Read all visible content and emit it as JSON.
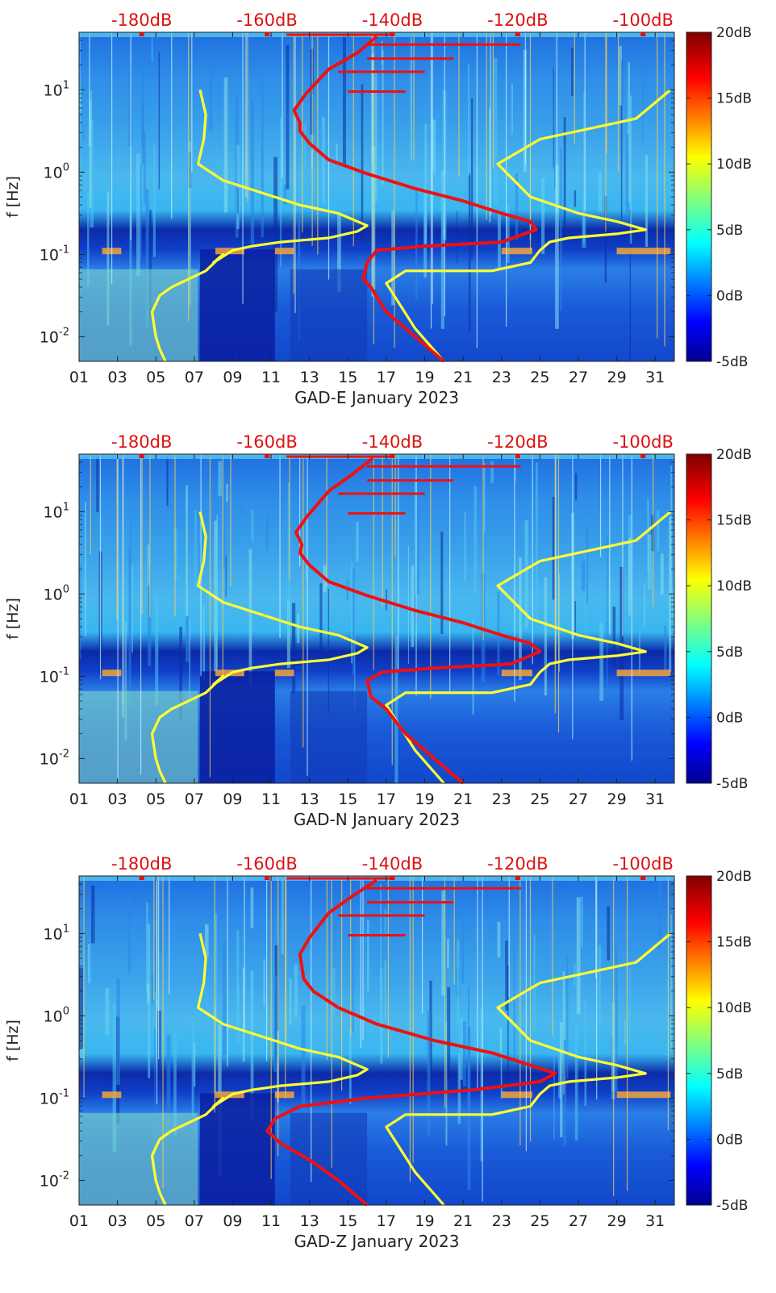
{
  "chart_data": {
    "type": "heatmap",
    "shared": {
      "top_axis_labels": [
        "-180dB",
        "-160dB",
        "-140dB",
        "-120dB",
        "-100dB"
      ],
      "x_tick_labels": [
        "01",
        "03",
        "05",
        "07",
        "09",
        "11",
        "13",
        "15",
        "17",
        "19",
        "21",
        "23",
        "25",
        "27",
        "29",
        "31"
      ],
      "y_tick_labels": [
        "10^-2",
        "10^-1",
        "10^0",
        "10^1"
      ],
      "y_tick_decades": [
        -2,
        -1,
        0,
        1
      ],
      "ylabel": "f [Hz]",
      "xlim": [
        1,
        32
      ],
      "ylim_log10": [
        -2.3,
        1.7
      ],
      "top_axis_range_db": [
        -190,
        -95
      ],
      "colorbar_labels": [
        "20dB",
        "15dB",
        "10dB",
        "5dB",
        "0dB",
        "-5dB"
      ],
      "colorbar_values": [
        20,
        15,
        10,
        5,
        0,
        -5
      ],
      "colors": {
        "model_curve": "#ffff33",
        "psd_curve": "#ee1111",
        "top_labels": "#dd1111"
      }
    },
    "panels": [
      {
        "title": "GAD-E January 2023",
        "series": [
          {
            "name": "noise-model-left",
            "x": [
              5.5,
              5.2,
              5.0,
              4.9,
              4.8,
              5.0,
              5.2,
              5.8,
              7.6,
              8.5,
              8.0,
              9.0,
              10.0,
              11.5,
              14.0,
              15.5,
              16.0,
              14.5,
              12.5,
              10.5,
              8.5,
              7.2,
              7.5,
              7.6,
              7.3
            ],
            "y": [
              -2.3,
              -2.15,
              -2.0,
              -1.85,
              -1.7,
              -1.6,
              -1.5,
              -1.4,
              -1.2,
              -1.0,
              -1.1,
              -0.95,
              -0.9,
              -0.85,
              -0.8,
              -0.72,
              -0.65,
              -0.5,
              -0.4,
              -0.25,
              -0.1,
              0.1,
              0.4,
              0.7,
              1.0
            ]
          },
          {
            "name": "noise-model-right",
            "x": [
              20.0,
              18.5,
              17.0,
              18.0,
              22.5,
              24.5,
              25.0,
              25.5,
              26.5,
              29.0,
              30.5,
              29.0,
              27.0,
              24.5,
              22.8,
              25.0,
              28.0,
              30.0,
              31.8
            ],
            "y": [
              -2.3,
              -1.9,
              -1.35,
              -1.2,
              -1.2,
              -1.1,
              -0.95,
              -0.85,
              -0.8,
              -0.75,
              -0.7,
              -0.6,
              -0.5,
              -0.3,
              0.1,
              0.4,
              0.55,
              0.65,
              1.0
            ]
          },
          {
            "name": "psd-curve",
            "x": [
              20.0,
              18.5,
              17.0,
              16.2,
              15.8,
              16.0,
              16.5,
              19.0,
              23.0,
              24.8,
              24.5,
              23.0,
              21.0,
              18.5,
              16.0,
              14.0,
              13.0,
              12.5,
              12.5,
              12.2,
              12.8,
              14.0,
              15.5,
              16.5
            ],
            "y": [
              -2.3,
              -2.0,
              -1.7,
              -1.4,
              -1.3,
              -1.1,
              -0.95,
              -0.9,
              -0.85,
              -0.7,
              -0.6,
              -0.5,
              -0.35,
              -0.2,
              -0.02,
              0.15,
              0.35,
              0.5,
              0.6,
              0.75,
              0.95,
              1.25,
              1.45,
              1.65
            ]
          }
        ]
      },
      {
        "title": "GAD-N January 2023",
        "series": [
          {
            "name": "noise-model-left",
            "x": [
              5.5,
              5.2,
              5.0,
              4.9,
              4.8,
              5.0,
              5.2,
              5.8,
              7.6,
              8.5,
              8.0,
              9.0,
              10.0,
              11.5,
              14.0,
              15.5,
              16.0,
              14.5,
              12.5,
              10.5,
              8.5,
              7.2,
              7.5,
              7.6,
              7.3
            ],
            "y": [
              -2.3,
              -2.15,
              -2.0,
              -1.85,
              -1.7,
              -1.6,
              -1.5,
              -1.4,
              -1.2,
              -1.0,
              -1.1,
              -0.95,
              -0.9,
              -0.85,
              -0.8,
              -0.72,
              -0.65,
              -0.5,
              -0.4,
              -0.25,
              -0.1,
              0.1,
              0.4,
              0.7,
              1.0
            ]
          },
          {
            "name": "noise-model-right",
            "x": [
              20.0,
              18.5,
              17.0,
              18.0,
              22.5,
              24.5,
              25.0,
              25.5,
              26.5,
              29.0,
              30.5,
              29.0,
              27.0,
              24.5,
              22.8,
              25.0,
              28.0,
              30.0,
              31.8
            ],
            "y": [
              -2.3,
              -1.9,
              -1.35,
              -1.2,
              -1.2,
              -1.1,
              -0.95,
              -0.85,
              -0.8,
              -0.75,
              -0.7,
              -0.6,
              -0.5,
              -0.3,
              0.1,
              0.4,
              0.55,
              0.65,
              1.0
            ]
          },
          {
            "name": "psd-curve",
            "x": [
              21.0,
              19.5,
              18.0,
              17.0,
              16.2,
              16.0,
              16.8,
              19.5,
              23.5,
              25.0,
              24.5,
              23.0,
              21.0,
              18.5,
              16.0,
              14.0,
              13.0,
              12.5,
              12.6,
              12.3,
              12.9,
              14.0,
              15.2,
              16.3
            ],
            "y": [
              -2.3,
              -2.0,
              -1.7,
              -1.4,
              -1.25,
              -1.05,
              -0.95,
              -0.9,
              -0.85,
              -0.7,
              -0.6,
              -0.5,
              -0.35,
              -0.2,
              -0.02,
              0.15,
              0.35,
              0.5,
              0.6,
              0.75,
              0.95,
              1.25,
              1.45,
              1.65
            ]
          }
        ]
      },
      {
        "title": "GAD-Z January 2023",
        "series": [
          {
            "name": "noise-model-left",
            "x": [
              5.5,
              5.2,
              5.0,
              4.9,
              4.8,
              5.0,
              5.2,
              5.8,
              7.6,
              8.5,
              8.0,
              9.0,
              10.0,
              11.5,
              14.0,
              15.5,
              16.0,
              14.5,
              12.5,
              10.5,
              8.5,
              7.2,
              7.5,
              7.6,
              7.3
            ],
            "y": [
              -2.3,
              -2.15,
              -2.0,
              -1.85,
              -1.7,
              -1.6,
              -1.5,
              -1.4,
              -1.2,
              -1.0,
              -1.1,
              -0.95,
              -0.9,
              -0.85,
              -0.8,
              -0.72,
              -0.65,
              -0.5,
              -0.4,
              -0.25,
              -0.1,
              0.1,
              0.4,
              0.7,
              1.0
            ]
          },
          {
            "name": "noise-model-right",
            "x": [
              20.0,
              18.5,
              17.0,
              18.0,
              22.5,
              24.5,
              25.0,
              25.5,
              26.5,
              29.0,
              30.5,
              29.0,
              27.0,
              24.5,
              22.8,
              25.0,
              28.0,
              30.0,
              31.8
            ],
            "y": [
              -2.3,
              -1.9,
              -1.35,
              -1.2,
              -1.2,
              -1.1,
              -0.95,
              -0.85,
              -0.8,
              -0.75,
              -0.7,
              -0.6,
              -0.5,
              -0.3,
              0.1,
              0.4,
              0.55,
              0.65,
              1.0
            ]
          },
          {
            "name": "psd-curve",
            "x": [
              16.0,
              14.5,
              13.0,
              11.5,
              10.8,
              11.2,
              12.5,
              16.0,
              21.5,
              25.0,
              25.8,
              24.5,
              22.5,
              19.5,
              16.5,
              14.5,
              13.2,
              12.7,
              12.6,
              12.5,
              13.0,
              14.0,
              15.2,
              16.5
            ],
            "y": [
              -2.3,
              -2.0,
              -1.75,
              -1.55,
              -1.4,
              -1.25,
              -1.1,
              -1.0,
              -0.9,
              -0.8,
              -0.7,
              -0.6,
              -0.45,
              -0.3,
              -0.1,
              0.1,
              0.3,
              0.45,
              0.6,
              0.75,
              0.95,
              1.25,
              1.45,
              1.65
            ]
          }
        ]
      }
    ]
  }
}
